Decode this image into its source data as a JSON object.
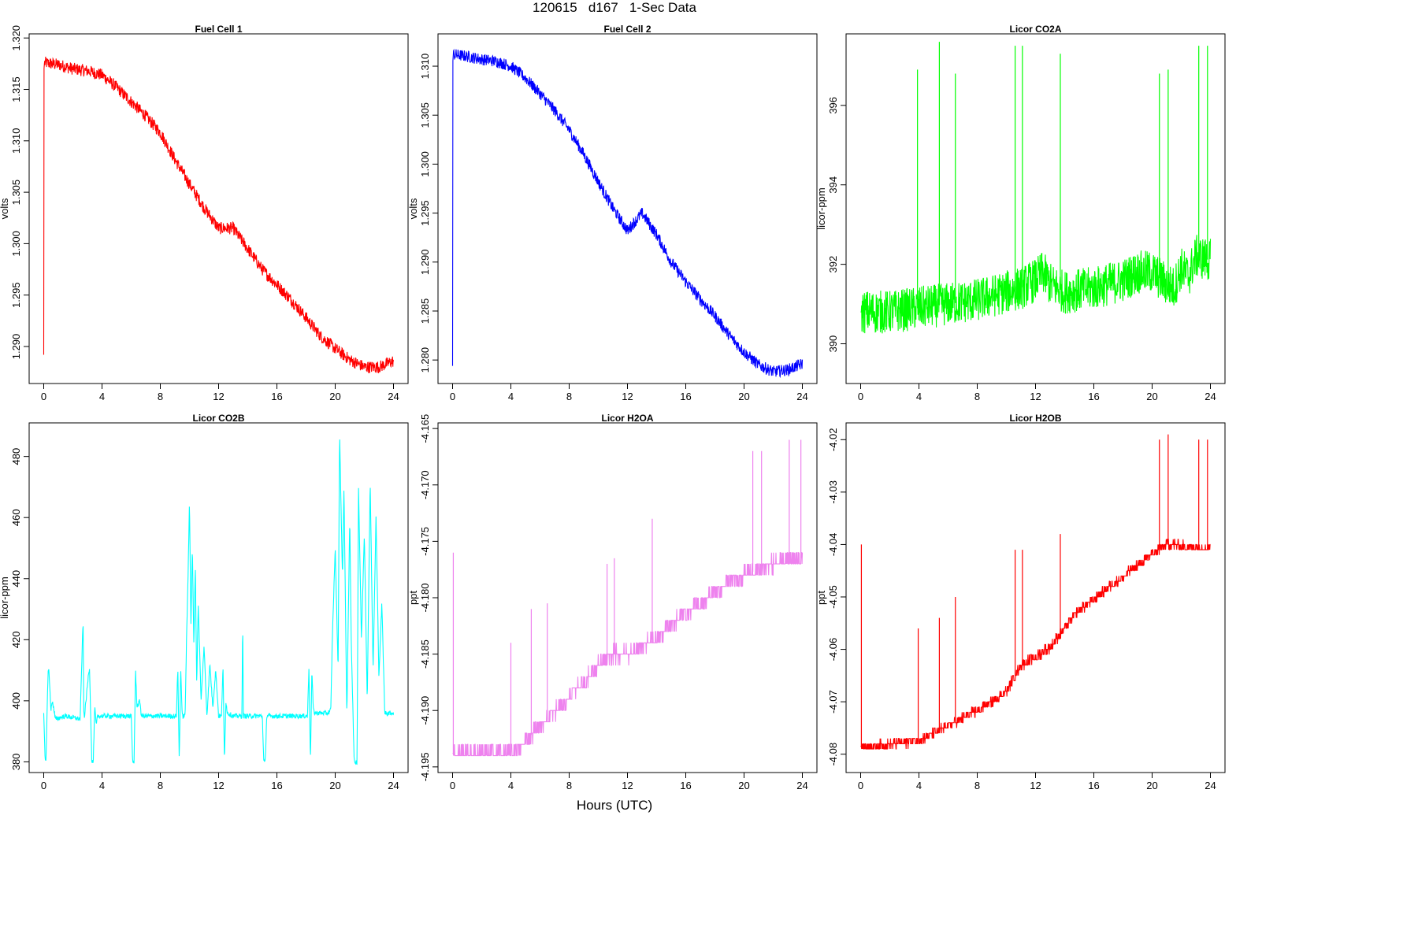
{
  "page": {
    "title": "120615   d167   1-Sec Data",
    "xlabel": "Hours (UTC)"
  },
  "chart_data": [
    {
      "type": "line",
      "title": "Fuel Cell 1",
      "xlabel": "Hours (UTC)",
      "ylabel": "volts",
      "color": "#ff0000",
      "xlim": [
        -1,
        25
      ],
      "ylim": [
        1.2864,
        1.3204
      ],
      "xticks": [
        0,
        4,
        8,
        12,
        16,
        20,
        24
      ],
      "yticks": [
        1.29,
        1.295,
        1.3,
        1.305,
        1.31,
        1.315,
        1.32
      ],
      "yticklabels": [
        "1.290",
        "1.295",
        "1.300",
        "1.305",
        "1.310",
        "1.315",
        "1.320"
      ],
      "noise": 0.0006,
      "grid": false,
      "series": [
        {
          "x": [
            0,
            0.02,
            0.05,
            1,
            2,
            3,
            4,
            5,
            6,
            7,
            8,
            9,
            10,
            11,
            12,
            13,
            14,
            15,
            16,
            17,
            18,
            19,
            20,
            21,
            22,
            23,
            24
          ],
          "y": [
            1.2892,
            1.317,
            1.3176,
            1.3174,
            1.317,
            1.3168,
            1.3164,
            1.3152,
            1.3138,
            1.3124,
            1.3108,
            1.3082,
            1.3058,
            1.3035,
            1.3015,
            1.3015,
            1.2995,
            1.2975,
            1.296,
            1.2945,
            1.2928,
            1.291,
            1.2898,
            1.2887,
            1.288,
            1.288,
            1.2886
          ]
        }
      ]
    },
    {
      "type": "line",
      "title": "Fuel Cell 2",
      "xlabel": "Hours (UTC)",
      "ylabel": "volts",
      "color": "#0000ff",
      "xlim": [
        -1,
        25
      ],
      "ylim": [
        1.2776,
        1.3133
      ],
      "xticks": [
        0,
        4,
        8,
        12,
        16,
        20,
        24
      ],
      "yticks": [
        1.28,
        1.285,
        1.29,
        1.295,
        1.3,
        1.305,
        1.31
      ],
      "yticklabels": [
        "1.280",
        "1.285",
        "1.290",
        "1.295",
        "1.300",
        "1.305",
        "1.310"
      ],
      "noise": 0.0006,
      "grid": false,
      "series": [
        {
          "x": [
            0,
            0.02,
            0.05,
            1,
            2,
            3,
            4,
            5,
            6,
            7,
            8,
            9,
            10,
            11,
            12,
            13,
            14,
            15,
            16,
            17,
            18,
            19,
            20,
            21,
            22,
            23,
            24
          ],
          "y": [
            1.2794,
            1.3105,
            1.3112,
            1.311,
            1.3107,
            1.3105,
            1.31,
            1.3088,
            1.3072,
            1.3055,
            1.3035,
            1.301,
            1.2982,
            1.2955,
            1.2932,
            1.295,
            1.2928,
            1.29,
            1.288,
            1.2862,
            1.2845,
            1.2825,
            1.2808,
            1.2795,
            1.2788,
            1.279,
            1.2796
          ]
        }
      ]
    },
    {
      "type": "line",
      "title": "Licor CO2A",
      "xlabel": "Hours (UTC)",
      "ylabel": "licor-ppm",
      "color": "#00ff00",
      "xlim": [
        -1,
        25
      ],
      "ylim": [
        389.0,
        397.8
      ],
      "xticks": [
        0,
        4,
        8,
        12,
        16,
        20,
        24
      ],
      "yticks": [
        390,
        392,
        394,
        396
      ],
      "yticklabels": [
        "390",
        "392",
        "394",
        "396"
      ],
      "noise": 0.55,
      "grid": false,
      "series": [
        {
          "x": [
            0,
            2,
            4,
            6,
            8,
            10,
            11,
            12,
            12.5,
            13,
            14,
            16,
            18,
            19,
            20,
            21,
            21.5,
            22,
            22.5,
            23,
            24
          ],
          "y": [
            390.8,
            390.8,
            390.9,
            391.0,
            391.1,
            391.3,
            391.4,
            391.6,
            391.8,
            391.5,
            391.3,
            391.4,
            391.6,
            391.8,
            391.8,
            391.5,
            391.4,
            391.9,
            391.7,
            392.2,
            392.1
          ]
        }
      ],
      "spikes": {
        "x": [
          3.9,
          5.4,
          6.5,
          10.6,
          11.1,
          13.7,
          20.5,
          21.1,
          23.2,
          23.8
        ],
        "y": [
          396.9,
          397.6,
          396.8,
          397.5,
          397.5,
          397.3,
          396.8,
          396.9,
          397.5,
          397.5
        ]
      }
    },
    {
      "type": "line",
      "title": "Licor CO2B",
      "xlabel": "Hours (UTC)",
      "ylabel": "licor-ppm",
      "color": "#00ffff",
      "xlim": [
        -1,
        25
      ],
      "ylim": [
        376.5,
        491
      ],
      "xticks": [
        0,
        4,
        8,
        12,
        16,
        20,
        24
      ],
      "yticks": [
        380,
        400,
        420,
        440,
        460,
        480
      ],
      "yticklabels": [
        "380",
        "400",
        "420",
        "440",
        "460",
        "480"
      ],
      "noise": 0.8,
      "grid": false,
      "series": [
        {
          "x": [
            0,
            0.1,
            0.15,
            0.3,
            0.35,
            0.5,
            0.6,
            0.8,
            1.5,
            2.5,
            2.7,
            2.75,
            2.8,
            3.1,
            3.15,
            3.3,
            3.4,
            3.5,
            3.6,
            3.7,
            5,
            6,
            6.1,
            6.2,
            6.3,
            6.4,
            6.6,
            6.7,
            7.5,
            8.5,
            9.1,
            9.2,
            9.3,
            9.4,
            9.5,
            9.7,
            9.8,
            9.9,
            10.0,
            10.1,
            10.2,
            10.3,
            10.4,
            10.5,
            10.6,
            10.8,
            11.0,
            11.2,
            11.4,
            11.6,
            11.8,
            12.0,
            12.2,
            12.3,
            12.4,
            12.5,
            12.6,
            13,
            13.6,
            13.65,
            13.7,
            14,
            15.0,
            15.1,
            15.2,
            15.3,
            15.5,
            17,
            18.1,
            18.2,
            18.3,
            18.4,
            18.5,
            18.6,
            19.5,
            19.7,
            19.8,
            20.0,
            20.2,
            20.3,
            20.5,
            20.6,
            20.8,
            21.0,
            21.1,
            21.3,
            21.5,
            21.6,
            21.8,
            22.0,
            22.2,
            22.4,
            22.6,
            22.8,
            23.0,
            23.2,
            23.4,
            23.6,
            24
          ],
          "y": [
            396,
            380,
            380,
            410,
            410,
            397,
            400,
            394,
            395,
            394,
            427,
            396,
            395,
            410,
            410,
            380,
            380,
            398,
            392,
            395,
            395,
            395,
            380,
            380,
            410,
            398,
            400,
            395,
            395,
            395,
            395,
            411,
            380,
            411,
            395,
            395,
            420,
            440,
            466,
            425,
            450,
            418,
            445,
            405,
            432,
            400,
            418,
            395,
            412,
            398,
            410,
            395,
            395,
            412,
            380,
            400,
            396,
            395,
            395,
            427,
            395,
            395,
            395,
            380,
            380,
            395,
            395,
            395,
            395,
            411,
            380,
            410,
            397,
            396,
            396,
            397,
            420,
            450,
            410,
            488,
            440,
            470,
            395,
            460,
            420,
            380,
            380,
            470,
            420,
            455,
            400,
            472,
            410,
            460,
            408,
            432,
            396,
            396,
            396
          ]
        }
      ]
    },
    {
      "type": "line",
      "title": "Licor H2OA",
      "xlabel": "Hours (UTC)",
      "ylabel": "ppt",
      "color": "#ee82ee",
      "xlim": [
        -1,
        25
      ],
      "ylim": [
        -4.1955,
        -4.1645
      ],
      "xticks": [
        0,
        4,
        8,
        12,
        16,
        20,
        24
      ],
      "yticks": [
        -4.195,
        -4.19,
        -4.185,
        -4.18,
        -4.175,
        -4.17,
        -4.165
      ],
      "yticklabels": [
        "-4.195",
        "-4.190",
        "-4.185",
        "-4.180",
        "-4.175",
        "-4.170",
        "-4.165"
      ],
      "step": 0.001,
      "noise": 0.0012,
      "grid": false,
      "series": [
        {
          "x": [
            0,
            4,
            4.5,
            5,
            5.5,
            6,
            6.5,
            7,
            7.5,
            8,
            8.5,
            9,
            9.5,
            10,
            10.5,
            11,
            12,
            13,
            14,
            15,
            16,
            17,
            18,
            19,
            20,
            21,
            22,
            23,
            24
          ],
          "y": [
            -4.1938,
            -4.1937,
            -4.1933,
            -4.1927,
            -4.192,
            -4.1913,
            -4.1908,
            -4.19,
            -4.1895,
            -4.189,
            -4.188,
            -4.1875,
            -4.1868,
            -4.186,
            -4.1855,
            -4.185,
            -4.185,
            -4.1843,
            -4.1835,
            -4.1823,
            -4.1813,
            -4.1805,
            -4.1795,
            -4.1787,
            -4.178,
            -4.1775,
            -4.177,
            -4.1765,
            -4.1765
          ]
        }
      ],
      "spikes": {
        "x": [
          0.05,
          4.0,
          5.4,
          6.5,
          10.6,
          11.1,
          13.7,
          20.6,
          21.2,
          23.1,
          23.9
        ],
        "y": [
          -4.176,
          -4.184,
          -4.181,
          -4.1805,
          -4.177,
          -4.1765,
          -4.173,
          -4.167,
          -4.167,
          -4.166,
          -4.166
        ]
      }
    },
    {
      "type": "line",
      "title": "Licor H2OB",
      "xlabel": "Hours (UTC)",
      "ylabel": "ppt",
      "color": "#ff0000",
      "xlim": [
        -1,
        25
      ],
      "ylim": [
        -4.0835,
        -4.0168
      ],
      "xticks": [
        0,
        4,
        8,
        12,
        16,
        20,
        24
      ],
      "yticks": [
        -4.08,
        -4.07,
        -4.06,
        -4.05,
        -4.04,
        -4.03,
        -4.02
      ],
      "yticklabels": [
        "-4.08",
        "-4.07",
        "-4.06",
        "-4.05",
        "-4.04",
        "-4.03",
        "-4.02"
      ],
      "step": 0.001,
      "noise": 0.0018,
      "grid": false,
      "series": [
        {
          "x": [
            0,
            2,
            4,
            5,
            6,
            7,
            8,
            9,
            10,
            10.5,
            11,
            12,
            13,
            14,
            15,
            16,
            17,
            18,
            19,
            20,
            20.5,
            21,
            22,
            23,
            24
          ],
          "y": [
            -4.0785,
            -4.0782,
            -4.0773,
            -4.076,
            -4.0745,
            -4.0732,
            -4.0718,
            -4.07,
            -4.068,
            -4.0655,
            -4.063,
            -4.0615,
            -4.0595,
            -4.056,
            -4.0525,
            -4.0505,
            -4.0482,
            -4.0462,
            -4.044,
            -4.0418,
            -4.0408,
            -4.0398,
            -4.0403,
            -4.0405,
            -4.0405
          ]
        }
      ],
      "spikes": {
        "x": [
          0.05,
          3.95,
          5.4,
          6.5,
          10.6,
          11.1,
          13.7,
          20.5,
          21.1,
          23.2,
          23.8
        ],
        "y": [
          -4.04,
          -4.056,
          -4.054,
          -4.05,
          -4.041,
          -4.041,
          -4.038,
          -4.02,
          -4.019,
          -4.02,
          -4.02
        ]
      }
    }
  ]
}
